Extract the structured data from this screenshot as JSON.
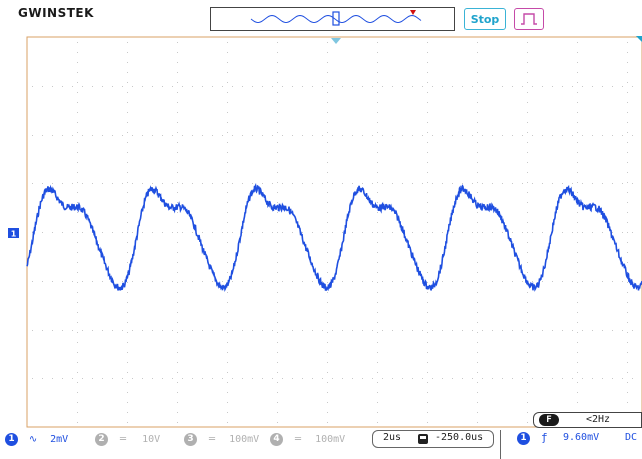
{
  "brand": {
    "logo": "GWINSTEK"
  },
  "run_control": {
    "stop_label": "Stop"
  },
  "colors": {
    "ch1": "#1f4fe0",
    "ch_inactive": "#b0b0b0",
    "graticule_frame": "#d9a066",
    "graticule_dot": "#c8c8c8",
    "run_stop": "#1fa3cc",
    "trigger_button": "#c54aa8"
  },
  "channels": [
    {
      "number": "1",
      "coupling_icon": "ac-coupling-icon",
      "scale": "2mV",
      "active": true
    },
    {
      "number": "2",
      "coupling_icon": "dc-coupling-icon",
      "scale": "10V",
      "active": false
    },
    {
      "number": "3",
      "coupling_icon": "dc-coupling-icon",
      "scale": "100mV",
      "active": false
    },
    {
      "number": "4",
      "coupling_icon": "dc-coupling-icon",
      "scale": "100mV",
      "active": false
    }
  ],
  "timebase": {
    "scale": "2us",
    "position": "-250.0us"
  },
  "trigger": {
    "source": "1",
    "slope_icon": "rising-edge-icon",
    "level": "9.60mV",
    "coupling": "DC"
  },
  "frequency_counter": {
    "badge": "F",
    "value": "<2Hz"
  },
  "waveform": {
    "channel": "1",
    "period_divisions": 2.07,
    "markers": {
      "ground_label": "1"
    }
  }
}
